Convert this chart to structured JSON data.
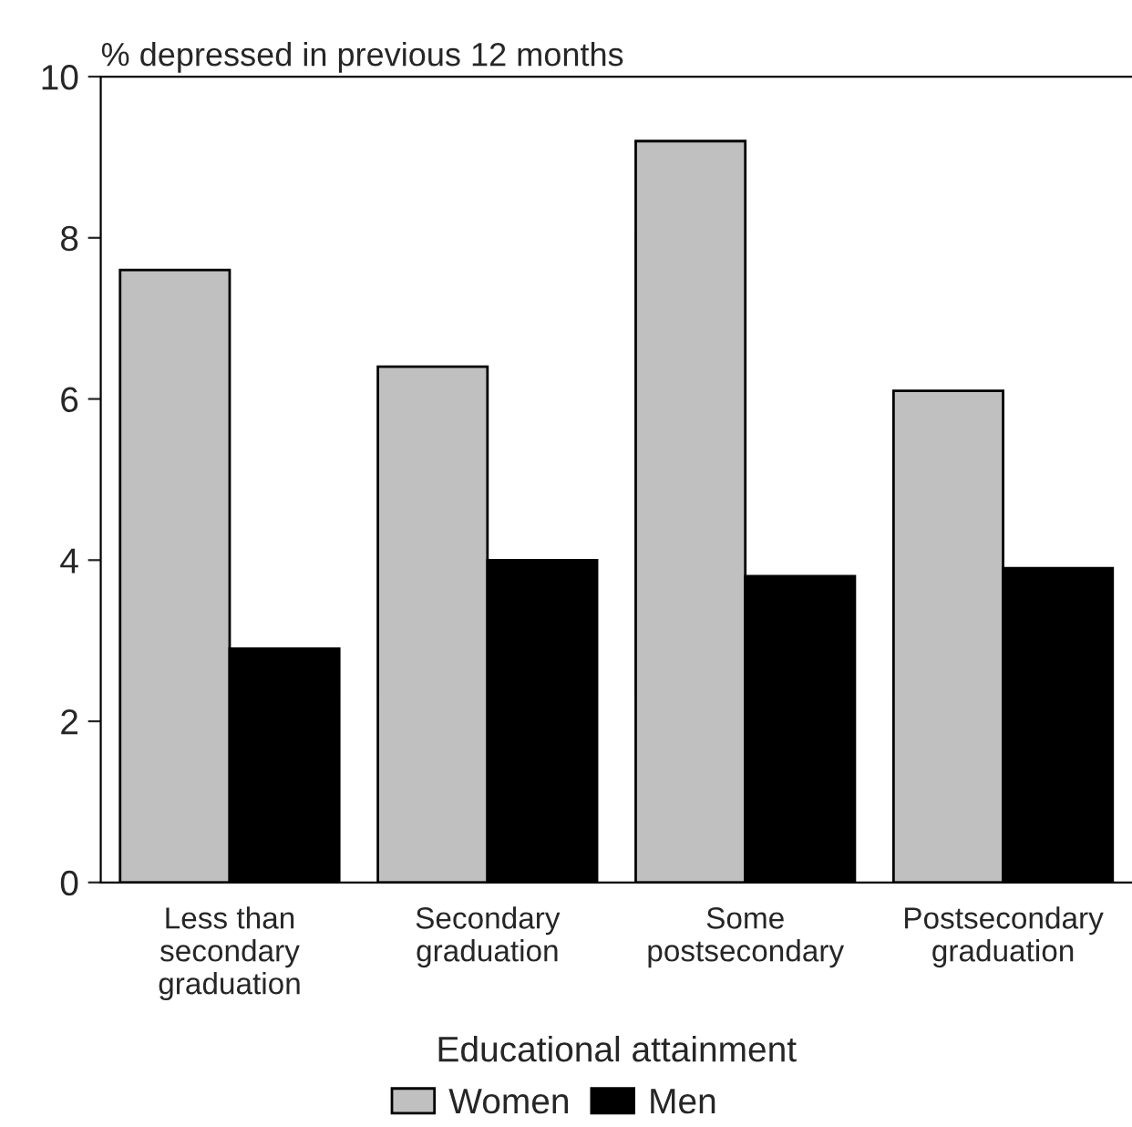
{
  "chart_data": {
    "type": "bar",
    "ylabel": "% depressed in previous 12 months",
    "xlabel": "Educational attainment",
    "categories": [
      "Less than\nsecondary\ngraduation",
      "Secondary\ngraduation",
      "Some\npostsecondary",
      "Postsecondary\ngraduation"
    ],
    "series": [
      {
        "name": "Women",
        "color": "#c0c0c0",
        "values": [
          7.6,
          6.4,
          9.2,
          6.1
        ]
      },
      {
        "name": "Men",
        "color": "#000000",
        "values": [
          2.9,
          4.0,
          3.8,
          3.9
        ]
      }
    ],
    "ylim": [
      0,
      10
    ],
    "yticks": [
      0,
      2,
      4,
      6,
      8,
      10
    ],
    "grid": false,
    "legend": "bottom"
  }
}
